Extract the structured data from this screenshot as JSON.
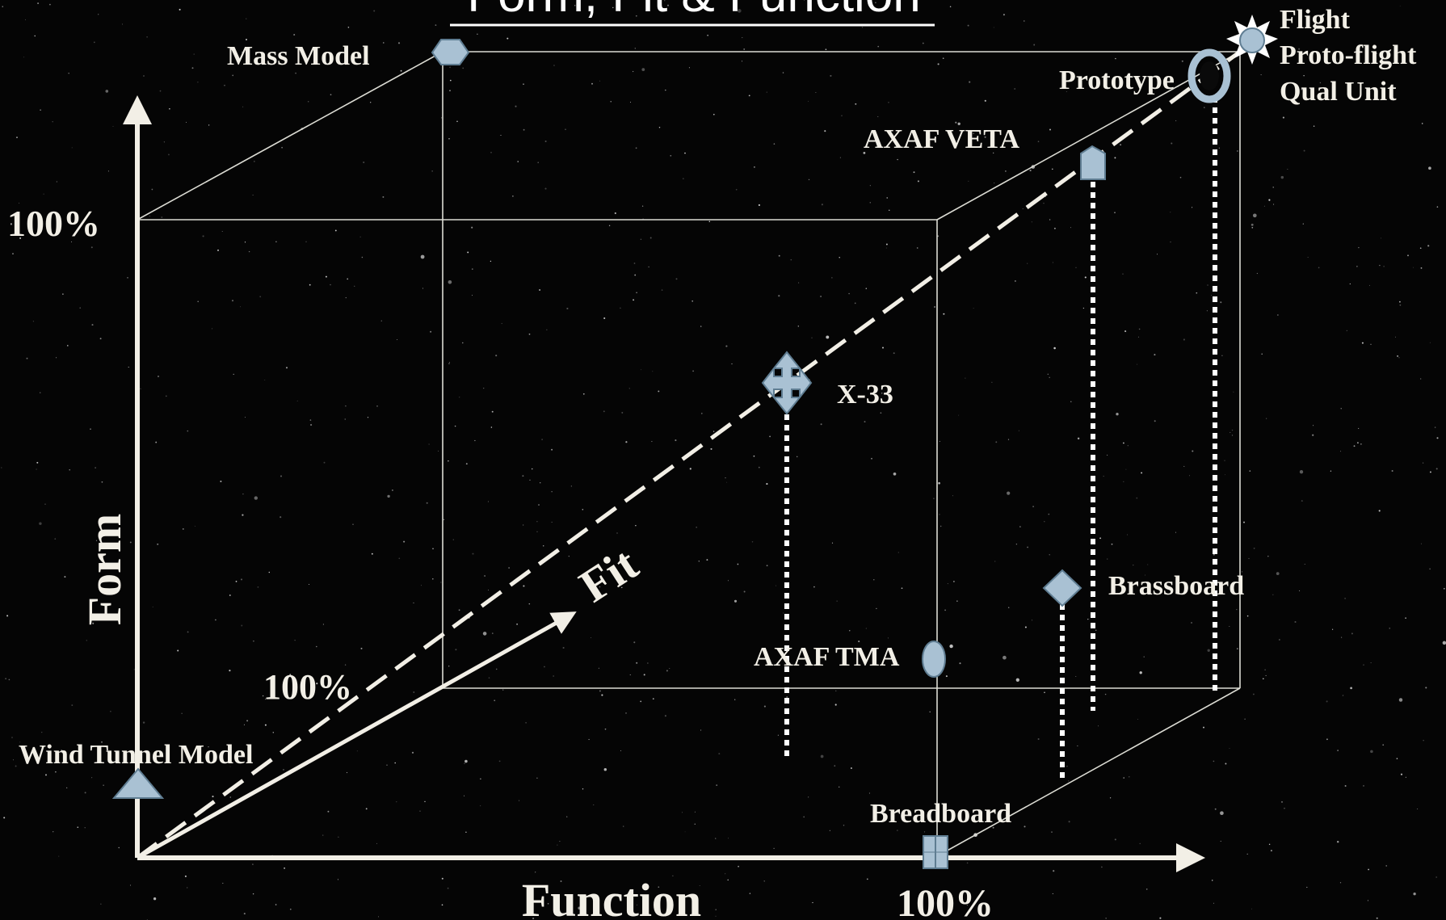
{
  "title": "Form, Fit & Function",
  "axes": {
    "form": "Form",
    "fit": "Fit",
    "function": "Function",
    "form_100": "100%",
    "fit_100": "100%",
    "function_100": "100%"
  },
  "models": {
    "mass_model": "Mass Model",
    "wind_tunnel_model": "Wind Tunnel Model",
    "prototype": "Prototype",
    "flight": "Flight",
    "proto_flight": "Proto-flight",
    "qual_unit": "Qual Unit",
    "axaf_veta": "AXAF VETA",
    "x33": "X-33",
    "brassboard": "Brassboard",
    "axaf_tma": "AXAF TMA",
    "breadboard": "Breadboard"
  },
  "colors": {
    "background": "#050505",
    "line": "#f2efe6",
    "marker": "#a9c1d3",
    "marker_dark": "#5f7d92"
  },
  "icons": {
    "mass_model": "hexagon-icon",
    "wind_tunnel_model": "triangle-icon",
    "prototype": "ring-icon",
    "flight": "sun-icon",
    "axaf_veta": "pentagon-flag-icon",
    "x33": "four-way-arrow-icon",
    "brassboard": "diamond-icon",
    "axaf_tma": "ellipse-icon",
    "breadboard": "square-icon"
  }
}
